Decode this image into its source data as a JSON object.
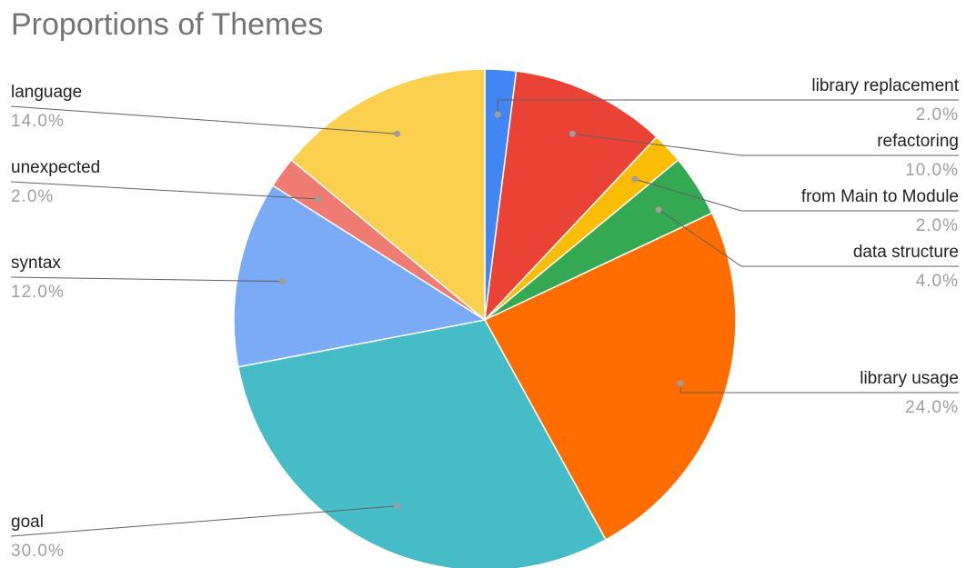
{
  "chart_data": {
    "type": "pie",
    "title": "Proportions of Themes",
    "slices": [
      {
        "label": "library replacement",
        "value": 2.0,
        "pct_label": "2.0%",
        "color": "#4285f4"
      },
      {
        "label": "refactoring",
        "value": 10.0,
        "pct_label": "10.0%",
        "color": "#ea4335"
      },
      {
        "label": "from Main to Module",
        "value": 2.0,
        "pct_label": "2.0%",
        "color": "#fbbc04"
      },
      {
        "label": "data structure",
        "value": 4.0,
        "pct_label": "4.0%",
        "color": "#34a853"
      },
      {
        "label": "library usage",
        "value": 24.0,
        "pct_label": "24.0%",
        "color": "#ff6d01"
      },
      {
        "label": "goal",
        "value": 30.0,
        "pct_label": "30.0%",
        "color": "#46bdc6"
      },
      {
        "label": "syntax",
        "value": 12.0,
        "pct_label": "12.0%",
        "color": "#7baaf7"
      },
      {
        "label": "unexpected",
        "value": 2.0,
        "pct_label": "2.0%",
        "color": "#f07b72"
      },
      {
        "label": "language",
        "value": 14.0,
        "pct_label": "14.0%",
        "color": "#fcd04f"
      }
    ],
    "start_angle": "12 o'clock",
    "direction": "clockwise",
    "legend": "none"
  }
}
